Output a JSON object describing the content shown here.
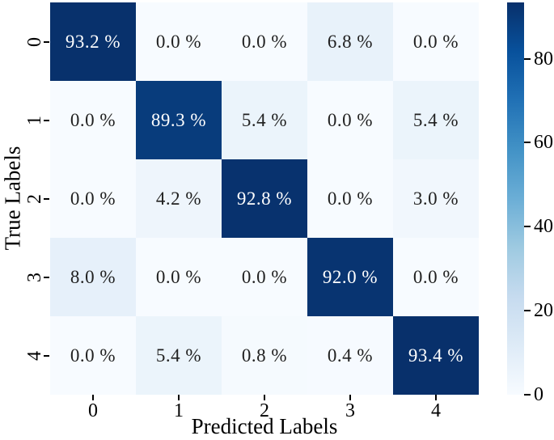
{
  "chart_data": {
    "type": "heatmap",
    "subtype": "confusion-matrix",
    "title": "",
    "xlabel": "Predicted Labels",
    "ylabel": "True Labels",
    "x_ticklabels": [
      "0",
      "1",
      "2",
      "3",
      "4"
    ],
    "y_ticklabels": [
      "0",
      "1",
      "2",
      "3",
      "4"
    ],
    "values": [
      [
        93.2,
        0.0,
        0.0,
        6.8,
        0.0
      ],
      [
        0.0,
        89.3,
        5.4,
        0.0,
        5.4
      ],
      [
        0.0,
        4.2,
        92.8,
        0.0,
        3.0
      ],
      [
        8.0,
        0.0,
        0.0,
        92.0,
        0.0
      ],
      [
        0.0,
        5.4,
        0.8,
        0.4,
        93.4
      ]
    ],
    "cell_labels": [
      [
        "93.2 %",
        "0.0 %",
        "0.0 %",
        "6.8 %",
        "0.0 %"
      ],
      [
        "0.0 %",
        "89.3 %",
        "5.4 %",
        "0.0 %",
        "5.4 %"
      ],
      [
        "0.0 %",
        "4.2 %",
        "92.8 %",
        "0.0 %",
        "3.0 %"
      ],
      [
        "8.0 %",
        "0.0 %",
        "0.0 %",
        "92.0 %",
        "0.0 %"
      ],
      [
        "0.0 %",
        "5.4 %",
        "0.8 %",
        "0.4 %",
        "93.4 %"
      ]
    ],
    "colormap": "Blues",
    "vmin": 0,
    "vmax": 93.4,
    "gridlines": false,
    "legend": "none",
    "colorbar": {
      "position": "right",
      "tick_values": [
        0,
        20,
        40,
        60,
        80
      ],
      "tick_labels": [
        "0",
        "20",
        "40",
        "60",
        "80"
      ]
    }
  },
  "colors": {
    "background": "#ffffff",
    "axis_text": "#000000",
    "annotation_dark": "#212121",
    "annotation_light": "#ffffff",
    "blues_colormap": [
      "#f7fbff",
      "#deebf7",
      "#c6dbef",
      "#9ecae1",
      "#6baed6",
      "#4292c6",
      "#2171b5",
      "#08519c",
      "#08306b"
    ]
  }
}
